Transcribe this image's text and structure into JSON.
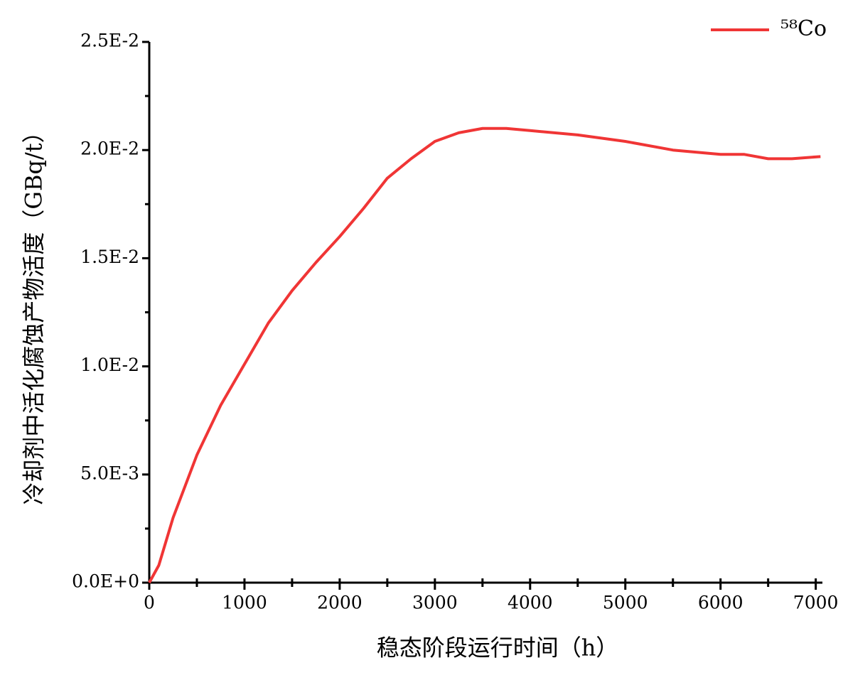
{
  "chart_data": {
    "type": "line",
    "x_label": "稳态阶段运行时间（h）",
    "y_label": "冷却剂中活化腐蚀产物活度（GBq/t）",
    "x": [
      0,
      100,
      250,
      500,
      750,
      1000,
      1250,
      1500,
      1750,
      2000,
      2250,
      2500,
      2750,
      3000,
      3250,
      3500,
      3750,
      4000,
      4500,
      5000,
      5500,
      6000,
      6250,
      6500,
      6750,
      7050
    ],
    "series": [
      {
        "name": "⁵⁸Co",
        "color": "#f03535",
        "values": [
          0,
          0.0008,
          0.003,
          0.0059,
          0.0082,
          0.0101,
          0.012,
          0.0135,
          0.0148,
          0.016,
          0.0173,
          0.0187,
          0.0196,
          0.0204,
          0.0208,
          0.021,
          0.021,
          0.0209,
          0.0207,
          0.0204,
          0.02,
          0.0198,
          0.0198,
          0.0196,
          0.0196,
          0.0197
        ]
      }
    ],
    "xlim": [
      0,
      7070
    ],
    "ylim": [
      0,
      0.025
    ],
    "xticks": [
      0,
      1000,
      2000,
      3000,
      4000,
      5000,
      6000,
      7000
    ],
    "xminorticks": [
      500,
      1500,
      2500,
      3500,
      4500,
      5500,
      6500
    ],
    "yticks": [
      {
        "value": 0,
        "label": "0.0E+0"
      },
      {
        "value": 0.005,
        "label": "5.0E-3"
      },
      {
        "value": 0.01,
        "label": "1.0E-2"
      },
      {
        "value": 0.015,
        "label": "1.5E-2"
      },
      {
        "value": 0.02,
        "label": "2.0E-2"
      },
      {
        "value": 0.025,
        "label": "2.5E-2"
      }
    ],
    "yminorticks": [
      0.0025,
      0.0075,
      0.0125,
      0.0175,
      0.0225
    ],
    "legend": "upper right"
  }
}
